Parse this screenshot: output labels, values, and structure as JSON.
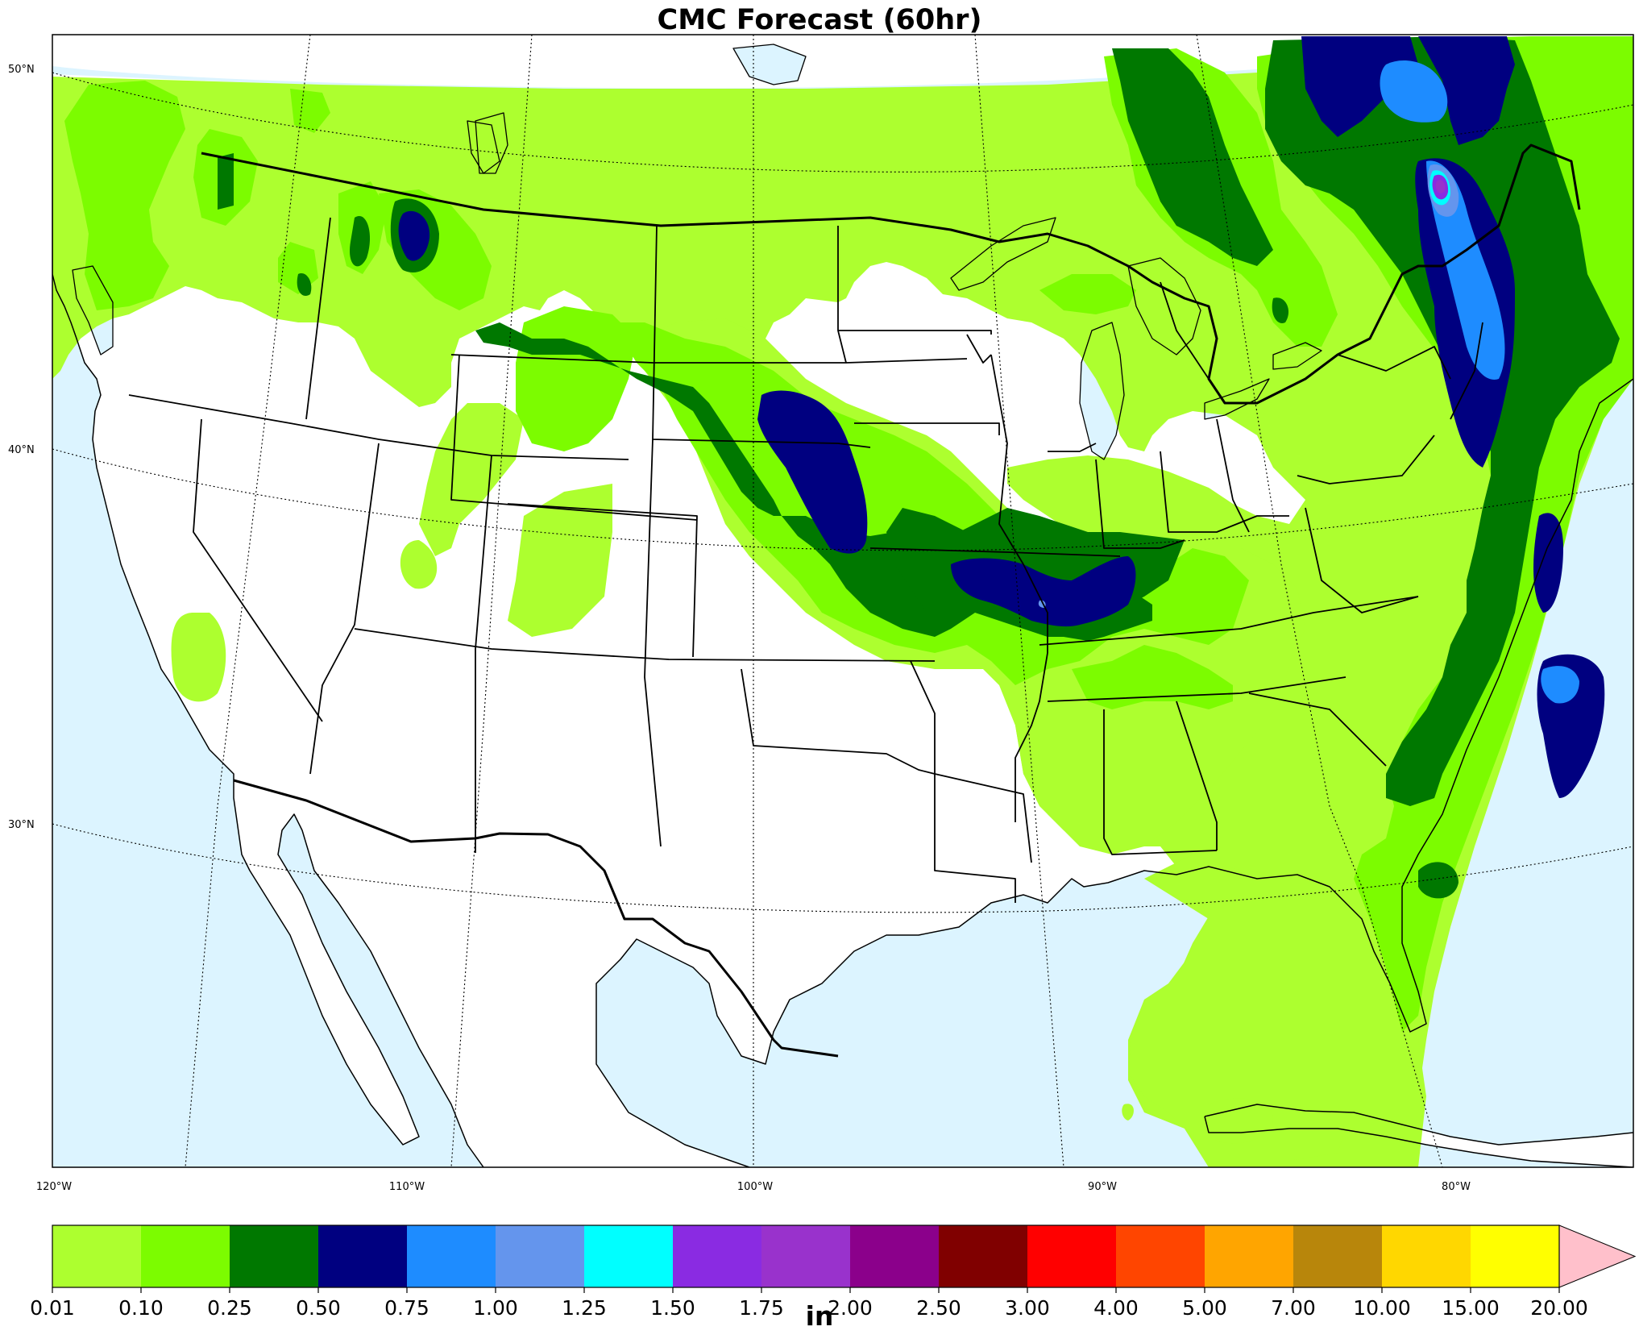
{
  "title": "CMC Forecast (60hr)",
  "colors": {
    "ocean": "#dcf4ff",
    "land": "#ffffff",
    "levels": [
      "#adff2f",
      "#7cfc00",
      "#007800",
      "#000080",
      "#1e8cff",
      "#6495ed",
      "#00ffff",
      "#8a2be2",
      "#9932cc",
      "#8b008b",
      "#800000",
      "#ff0000",
      "#ff4500",
      "#ffa500",
      "#b8860b",
      "#ffd700",
      "#ffff00",
      "#ffc0cb"
    ]
  },
  "map": {
    "lat_labels": [
      "50°N",
      "40°N",
      "30°N"
    ],
    "lon_labels": [
      "120°W",
      "110°W",
      "100°W",
      "90°W",
      "80°W"
    ]
  },
  "colorbar": {
    "ticks": [
      "0.01",
      "0.10",
      "0.25",
      "0.50",
      "0.75",
      "1.00",
      "1.25",
      "1.50",
      "1.75",
      "2.00",
      "2.50",
      "3.00",
      "4.00",
      "5.00",
      "7.00",
      "10.00",
      "15.00",
      "20.00"
    ],
    "unit": "in",
    "extend": "max"
  }
}
